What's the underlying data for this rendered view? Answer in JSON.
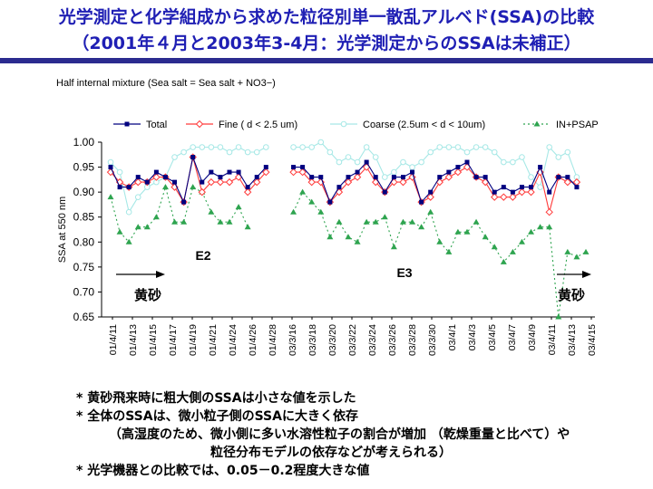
{
  "title_line1": "光学測定と化学組成から求めた粒径別単一散乱アルベド(SSA)の比較",
  "title_line2": "（2001年４月と2003年3-4月：光学測定からのSSAは未補正）",
  "chart_note": "Half internal mixture (Sea salt = Sea salt + NO3−)",
  "chart_data": {
    "type": "line",
    "ylabel": "SSA at 550 nm",
    "ylim": [
      0.65,
      1.0
    ],
    "yticks": [
      "0.65",
      "0.70",
      "0.75",
      "0.80",
      "0.85",
      "0.90",
      "0.95",
      "1.00"
    ],
    "x_labels": [
      "01/4/11",
      "01/4/13",
      "01/4/15",
      "01/4/17",
      "01/4/19",
      "01/4/21",
      "01/4/24",
      "01/4/26",
      "01/4/28",
      "03/3/16",
      "03/3/18",
      "03/3/20",
      "03/3/22",
      "03/3/24",
      "03/3/26",
      "03/3/28",
      "03/3/30",
      "03/4/1",
      "03/4/3",
      "03/4/5",
      "03/4/7",
      "03/4/9",
      "03/4/11",
      "03/4/13",
      "03/4/15"
    ],
    "legend": [
      "Total",
      "Fine ( d < 2.5 um)",
      "Coarse (2.5um < d < 10um)",
      "IN+PSAP"
    ],
    "colors": {
      "Total": "#00007f",
      "Fine": "#ff3b3b",
      "Coarse": "#a6e8e6",
      "IN+PSAP": "#2ea44f"
    },
    "series": [
      {
        "name": "Total",
        "segments": [
          [
            [
              0,
              0.95
            ],
            [
              1,
              0.91
            ],
            [
              2,
              0.91
            ],
            [
              3,
              0.93
            ],
            [
              4,
              0.92
            ],
            [
              5,
              0.94
            ],
            [
              6,
              0.93
            ],
            [
              7,
              0.92
            ],
            [
              8,
              0.88
            ],
            [
              9,
              0.97
            ],
            [
              10,
              0.92
            ],
            [
              11,
              0.94
            ],
            [
              12,
              0.93
            ],
            [
              13,
              0.94
            ],
            [
              14,
              0.94
            ],
            [
              15,
              0.91
            ],
            [
              16,
              0.93
            ],
            [
              17,
              0.95
            ]
          ],
          [
            [
              20,
              0.95
            ],
            [
              21,
              0.95
            ],
            [
              22,
              0.93
            ],
            [
              23,
              0.93
            ],
            [
              24,
              0.88
            ],
            [
              25,
              0.91
            ],
            [
              26,
              0.93
            ],
            [
              27,
              0.94
            ],
            [
              28,
              0.96
            ],
            [
              29,
              0.93
            ],
            [
              30,
              0.9
            ],
            [
              31,
              0.93
            ],
            [
              32,
              0.93
            ],
            [
              33,
              0.94
            ],
            [
              34,
              0.88
            ],
            [
              35,
              0.9
            ],
            [
              36,
              0.93
            ],
            [
              37,
              0.94
            ],
            [
              38,
              0.95
            ],
            [
              39,
              0.96
            ],
            [
              40,
              0.93
            ],
            [
              41,
              0.93
            ],
            [
              42,
              0.9
            ],
            [
              43,
              0.91
            ],
            [
              44,
              0.9
            ],
            [
              45,
              0.91
            ],
            [
              46,
              0.91
            ],
            [
              47,
              0.95
            ],
            [
              48,
              0.9
            ],
            [
              49,
              0.93
            ],
            [
              50,
              0.93
            ],
            [
              51,
              0.91
            ]
          ]
        ]
      },
      {
        "name": "Fine",
        "segments": [
          [
            [
              0,
              0.94
            ],
            [
              1,
              0.92
            ],
            [
              2,
              0.91
            ],
            [
              3,
              0.92
            ],
            [
              4,
              0.92
            ],
            [
              5,
              0.93
            ],
            [
              6,
              0.93
            ],
            [
              7,
              0.91
            ],
            [
              8,
              0.88
            ],
            [
              9,
              0.97
            ],
            [
              10,
              0.9
            ],
            [
              11,
              0.92
            ],
            [
              12,
              0.92
            ],
            [
              13,
              0.92
            ],
            [
              14,
              0.93
            ],
            [
              15,
              0.9
            ],
            [
              16,
              0.92
            ],
            [
              17,
              0.94
            ]
          ],
          [
            [
              20,
              0.94
            ],
            [
              21,
              0.94
            ],
            [
              22,
              0.92
            ],
            [
              23,
              0.92
            ],
            [
              24,
              0.88
            ],
            [
              25,
              0.9
            ],
            [
              26,
              0.92
            ],
            [
              27,
              0.93
            ],
            [
              28,
              0.95
            ],
            [
              29,
              0.92
            ],
            [
              30,
              0.9
            ],
            [
              31,
              0.92
            ],
            [
              32,
              0.92
            ],
            [
              33,
              0.93
            ],
            [
              34,
              0.88
            ],
            [
              35,
              0.89
            ],
            [
              36,
              0.92
            ],
            [
              37,
              0.93
            ],
            [
              38,
              0.94
            ],
            [
              39,
              0.95
            ],
            [
              40,
              0.93
            ],
            [
              41,
              0.92
            ],
            [
              42,
              0.89
            ],
            [
              43,
              0.89
            ],
            [
              44,
              0.89
            ],
            [
              45,
              0.9
            ],
            [
              46,
              0.9
            ],
            [
              47,
              0.94
            ],
            [
              48,
              0.86
            ],
            [
              49,
              0.93
            ],
            [
              50,
              0.92
            ],
            [
              51,
              0.92
            ]
          ]
        ]
      },
      {
        "name": "Coarse",
        "segments": [
          [
            [
              0,
              0.96
            ],
            [
              1,
              0.94
            ],
            [
              2,
              0.86
            ],
            [
              3,
              0.89
            ],
            [
              4,
              0.91
            ],
            [
              5,
              0.92
            ],
            [
              6,
              0.93
            ],
            [
              7,
              0.97
            ],
            [
              8,
              0.98
            ],
            [
              9,
              0.99
            ],
            [
              10,
              0.99
            ],
            [
              11,
              0.99
            ],
            [
              12,
              0.99
            ],
            [
              13,
              0.98
            ],
            [
              14,
              0.99
            ],
            [
              15,
              0.98
            ],
            [
              16,
              0.98
            ],
            [
              17,
              0.99
            ]
          ],
          [
            [
              20,
              0.99
            ],
            [
              21,
              0.99
            ],
            [
              22,
              0.99
            ],
            [
              23,
              1.0
            ],
            [
              24,
              0.98
            ],
            [
              25,
              0.96
            ],
            [
              26,
              0.97
            ],
            [
              27,
              0.96
            ],
            [
              28,
              0.99
            ],
            [
              29,
              0.97
            ],
            [
              30,
              0.93
            ],
            [
              31,
              0.94
            ],
            [
              32,
              0.96
            ],
            [
              33,
              0.95
            ],
            [
              34,
              0.96
            ],
            [
              35,
              0.98
            ],
            [
              36,
              0.99
            ],
            [
              37,
              0.99
            ],
            [
              38,
              0.99
            ],
            [
              39,
              0.98
            ],
            [
              40,
              0.99
            ],
            [
              41,
              0.99
            ],
            [
              42,
              0.98
            ],
            [
              43,
              0.96
            ],
            [
              44,
              0.96
            ],
            [
              45,
              0.97
            ],
            [
              46,
              0.93
            ],
            [
              47,
              0.91
            ],
            [
              48,
              0.99
            ],
            [
              49,
              0.97
            ],
            [
              50,
              0.98
            ],
            [
              51,
              0.93
            ]
          ]
        ]
      },
      {
        "name": "IN+PSAP",
        "segments": [
          [
            [
              0,
              0.89
            ],
            [
              1,
              0.82
            ],
            [
              2,
              0.8
            ],
            [
              3,
              0.83
            ],
            [
              4,
              0.83
            ],
            [
              5,
              0.85
            ],
            [
              6,
              0.91
            ],
            [
              7,
              0.84
            ],
            [
              8,
              0.84
            ],
            [
              9,
              0.91
            ],
            [
              10,
              0.9
            ],
            [
              11,
              0.86
            ],
            [
              12,
              0.84
            ],
            [
              13,
              0.84
            ],
            [
              14,
              0.87
            ],
            [
              15,
              0.83
            ]
          ],
          [
            [
              20,
              0.86
            ],
            [
              21,
              0.9
            ],
            [
              22,
              0.88
            ],
            [
              23,
              0.86
            ],
            [
              24,
              0.81
            ],
            [
              25,
              0.84
            ],
            [
              26,
              0.81
            ],
            [
              27,
              0.8
            ],
            [
              28,
              0.84
            ],
            [
              29,
              0.84
            ],
            [
              30,
              0.85
            ],
            [
              31,
              0.79
            ],
            [
              32,
              0.84
            ],
            [
              33,
              0.84
            ],
            [
              34,
              0.83
            ],
            [
              35,
              0.86
            ],
            [
              36,
              0.8
            ],
            [
              37,
              0.78
            ],
            [
              38,
              0.82
            ],
            [
              39,
              0.82
            ],
            [
              40,
              0.84
            ],
            [
              41,
              0.81
            ],
            [
              42,
              0.79
            ],
            [
              43,
              0.76
            ],
            [
              44,
              0.78
            ],
            [
              45,
              0.8
            ],
            [
              46,
              0.82
            ],
            [
              47,
              0.83
            ],
            [
              48,
              0.83
            ],
            [
              49,
              0.65
            ],
            [
              50,
              0.78
            ],
            [
              51,
              0.77
            ],
            [
              52,
              0.78
            ]
          ]
        ]
      }
    ],
    "annotations": {
      "e2": "E2",
      "e3": "E3",
      "dust_left": "黄砂",
      "dust_right": "黄砂"
    }
  },
  "bullets": [
    "* 黄砂飛来時に粗大側のSSAは小さな値を示した",
    "* 全体のSSAは、微小粒子側のSSAに大きく依存",
    "（高湿度のため、微小側に多い水溶性粒子の割合が増加 （乾燥重量と比べて）や",
    "粒径分布モデルの依存などが考えられる）",
    "* 光学機器との比較では、0.05－0.2程度大きな値"
  ]
}
